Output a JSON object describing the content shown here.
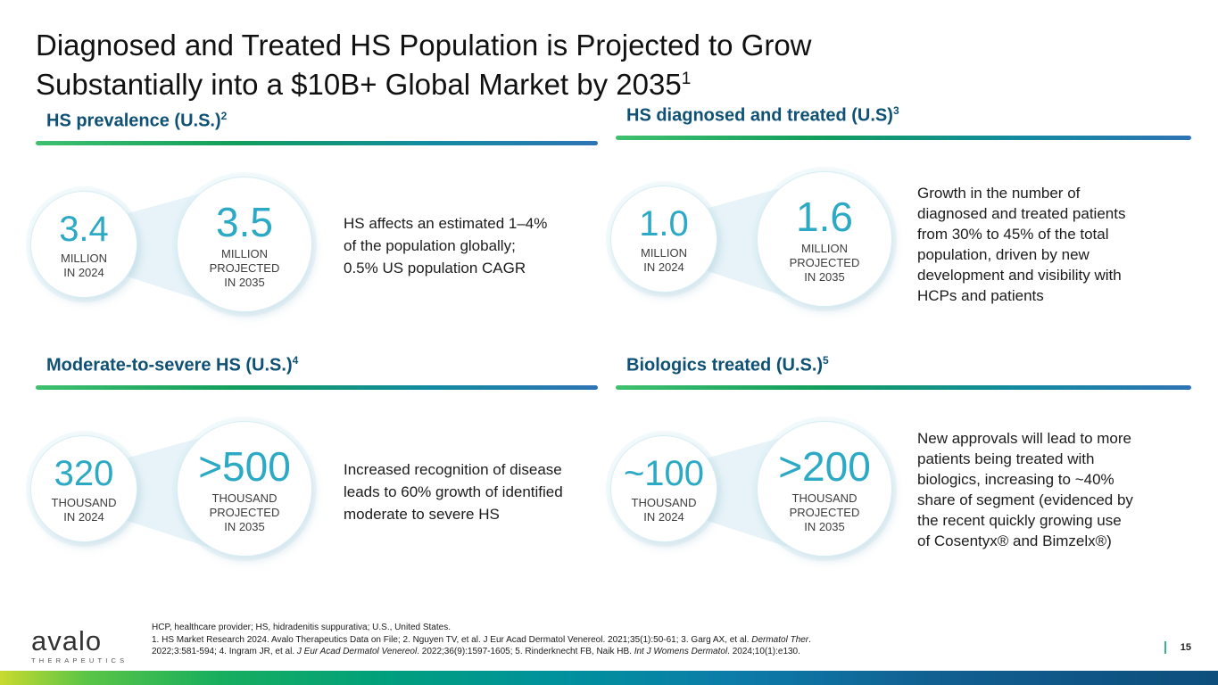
{
  "title": {
    "line1": "Diagnosed and Treated HS Population is Projected to Grow",
    "line2": "Substantially into a $10B+ Global Market by 2035",
    "sup": "1"
  },
  "quadrants": [
    {
      "header": "HS prevalence (U.S.)",
      "sup": "2",
      "c2024": {
        "value": "3.4",
        "l1": "MILLION",
        "l2": "IN 2024"
      },
      "c2035": {
        "value": "3.5",
        "l1": "MILLION",
        "l2": "PROJECTED",
        "l3": "IN 2035"
      },
      "text_lines": [
        "HS affects an estimated 1–4%",
        "of the population globally;",
        "0.5% US population CAGR"
      ]
    },
    {
      "header": "HS diagnosed and treated (U.S)",
      "sup": "3",
      "c2024": {
        "value": "1.0",
        "l1": "MILLION",
        "l2": "IN 2024"
      },
      "c2035": {
        "value": "1.6",
        "l1": "MILLION",
        "l2": "PROJECTED",
        "l3": "IN 2035"
      },
      "text_lines": [
        "Growth in the number of",
        "diagnosed and treated patients",
        "from 30% to 45% of the total",
        "population, driven by new",
        "development and visibility with",
        "HCPs and patients"
      ]
    },
    {
      "header": "Moderate-to-severe HS (U.S.)",
      "sup": "4",
      "c2024": {
        "value": "320",
        "l1": "THOUSAND",
        "l2": "IN 2024"
      },
      "c2035": {
        "value": ">500",
        "l1": "THOUSAND",
        "l2": "PROJECTED",
        "l3": "IN 2035"
      },
      "text_lines": [
        "Increased recognition of disease",
        "leads to 60% growth of identified",
        "moderate to severe HS"
      ]
    },
    {
      "header": "Biologics treated (U.S.)",
      "sup": "5",
      "c2024": {
        "value": "~100",
        "l1": "THOUSAND",
        "l2": "IN 2024"
      },
      "c2035": {
        "value": ">200",
        "l1": "THOUSAND",
        "l2": "PROJECTED",
        "l3": "IN 2035"
      },
      "text_lines": [
        "New approvals will lead to more",
        "patients being treated with",
        "biologics, increasing to ~40%",
        "share of segment (evidenced by",
        "the recent quickly growing use",
        "of Cosentyx® and Bimzelx®)"
      ]
    }
  ],
  "footer": {
    "logo": {
      "name": "avalo",
      "tagline": "THERAPEUTICS"
    },
    "abbreviations": "HCP, healthcare provider; HS, hidradenitis suppurativa; U.S., United States.",
    "references": [
      [
        {
          "text": "1. HS Market Research 2024. Avalo Therapeutics Data on File; 2. Nguyen TV, et al. J Eur Acad Dermatol Venereol. 2021;35(1):50-61; 3. Garg AX, et al. "
        },
        {
          "text": "Dermatol Ther",
          "italic": true
        },
        {
          "text": "."
        }
      ],
      [
        {
          "text": "2022;3:581-594; 4. Ingram JR, et al. "
        },
        {
          "text": "J Eur Acad Dermatol Venereol",
          "italic": true
        },
        {
          "text": ". 2022;36(9):1597-1605; 5. Rinderknecht FB, Naik HB. "
        },
        {
          "text": "Int J Womens Dermatol",
          "italic": true
        },
        {
          "text": ". 2024;10(1):e130."
        }
      ]
    ],
    "page_number": "15"
  },
  "colors": {
    "stat_teal": "#2CA9C4",
    "header_blue": "#0E5175",
    "underline_gradient": [
      "#3EC06F",
      "#2E74B5"
    ],
    "bottom_bar_gradient": [
      "#C9DA2F",
      "#17AE5E",
      "#00919D",
      "#0D4E7C"
    ],
    "page_marker_green": "#35B58B",
    "funnel_blue": "#E7F3F8"
  }
}
